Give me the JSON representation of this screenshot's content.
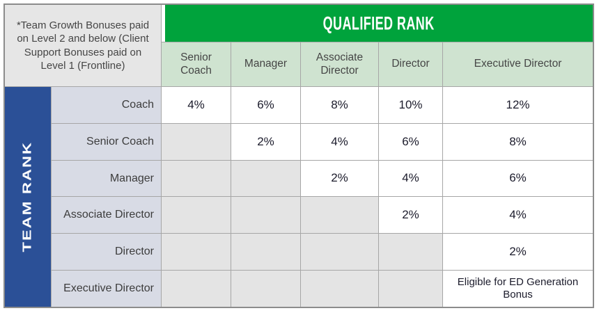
{
  "chart_data": {
    "type": "table",
    "corner_note": "*Team Growth Bonuses paid on Level 2 and below (Client Support Bonuses paid on Level 1 (Frontline)",
    "column_group_header": "QUALIFIED RANK",
    "row_group_header": "TEAM RANK",
    "columns": [
      "Senior Coach",
      "Manager",
      "Associate Director",
      "Director",
      "Executive Director"
    ],
    "rows": [
      {
        "label": "Coach",
        "values": [
          "4%",
          "6%",
          "8%",
          "10%",
          "12%"
        ]
      },
      {
        "label": "Senior Coach",
        "values": [
          "",
          "2%",
          "4%",
          "6%",
          "8%"
        ]
      },
      {
        "label": "Manager",
        "values": [
          "",
          "",
          "2%",
          "4%",
          "6%"
        ]
      },
      {
        "label": "Associate Director",
        "values": [
          "",
          "",
          "",
          "2%",
          "4%"
        ]
      },
      {
        "label": "Director",
        "values": [
          "",
          "",
          "",
          "",
          "2%"
        ]
      },
      {
        "label": "Executive Director",
        "values": [
          "",
          "",
          "",
          "",
          "Eligible for ED Generation Bonus"
        ]
      }
    ],
    "colors": {
      "banner_green": "#00a33c",
      "header_light_green": "#cfe3d0",
      "team_rank_blue": "#2b5097",
      "row_label_bg": "#d8dbe5",
      "empty_cell_bg": "#e4e4e4",
      "grid_line": "#a6a6a6",
      "outer_border": "#8c8c8c",
      "value_text": "#1b1b2b"
    },
    "legend_position": "none",
    "grid": true
  }
}
